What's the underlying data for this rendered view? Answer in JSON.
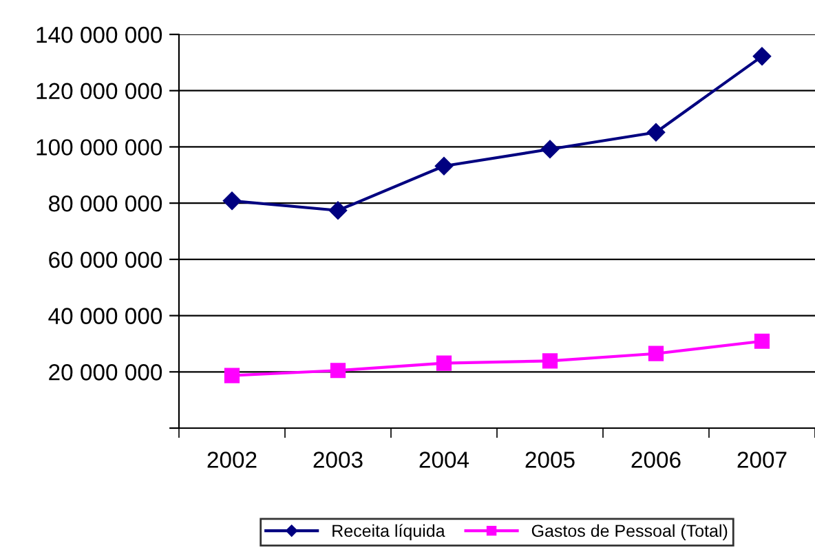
{
  "chart_data": {
    "type": "line",
    "categories": [
      "2002",
      "2003",
      "2004",
      "2005",
      "2006",
      "2007"
    ],
    "series": [
      {
        "name": "Receita líquida",
        "color": "#000080",
        "marker": "diamond",
        "values": [
          80800000,
          77400000,
          93200000,
          99200000,
          105200000,
          132200000
        ]
      },
      {
        "name": "Gastos de Pessoal (Total)",
        "color": "#ff00ff",
        "marker": "square",
        "values": [
          18700000,
          20500000,
          23100000,
          23900000,
          26500000,
          30900000
        ]
      }
    ],
    "ylim": [
      0,
      140000000
    ],
    "yticks": [
      {
        "value": 0,
        "label": null
      },
      {
        "value": 20000000,
        "label": "20 000 000"
      },
      {
        "value": 40000000,
        "label": "40 000 000"
      },
      {
        "value": 60000000,
        "label": "60 000 000"
      },
      {
        "value": 80000000,
        "label": "80 000 000"
      },
      {
        "value": 100000000,
        "label": "100 000 000"
      },
      {
        "value": 120000000,
        "label": "120 000 000"
      },
      {
        "value": 140000000,
        "label": "140 000 000"
      }
    ],
    "grid": "y",
    "legend": "bottom",
    "line_style": "solid"
  }
}
